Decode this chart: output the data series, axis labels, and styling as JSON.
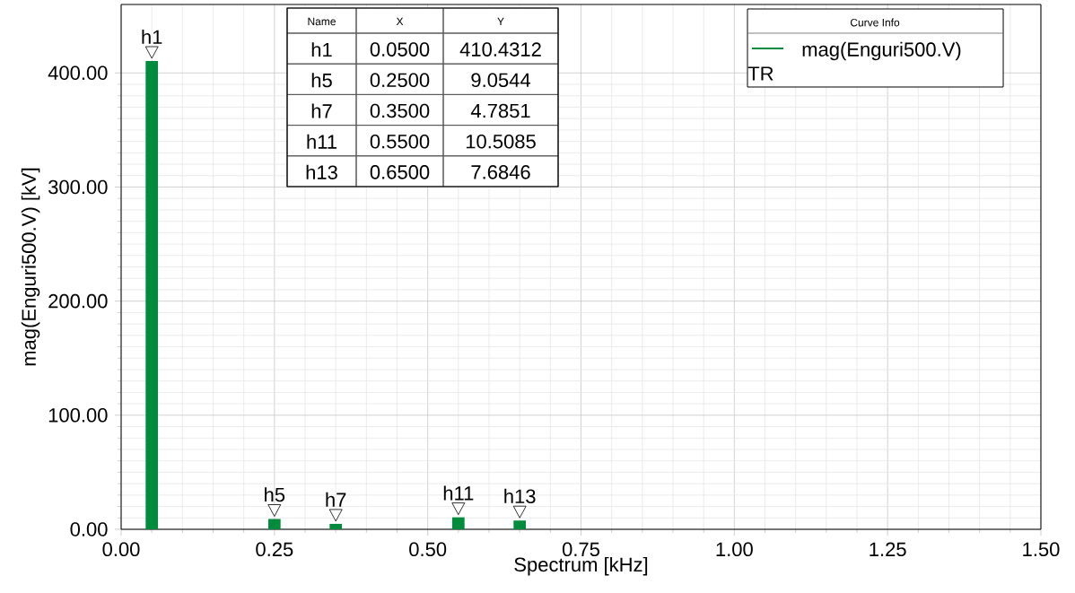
{
  "chart_data": {
    "type": "bar",
    "xlabel": "Spectrum [kHz]",
    "ylabel": "mag(Enguri500.V) [kV]",
    "legend_title": "Curve Info",
    "x": [
      0.05,
      0.25,
      0.35,
      0.55,
      0.65
    ],
    "series": [
      {
        "name": "mag(Enguri500.V)",
        "color": "#008c3c",
        "values": [
          410.4312,
          9.0544,
          4.7851,
          10.5085,
          7.6846
        ]
      }
    ],
    "value_labels": [
      "410.4312",
      "9.0544",
      "4.7851",
      "10.5085",
      "7.6846"
    ],
    "annotations": [
      {
        "text": "h1",
        "x": 0.05,
        "y": 410.4312
      },
      {
        "text": "h5",
        "x": 0.25,
        "y": 9.0544
      },
      {
        "text": "h7",
        "x": 0.35,
        "y": 4.7851
      },
      {
        "text": "h11",
        "x": 0.55,
        "y": 10.5085
      },
      {
        "text": "h13",
        "x": 0.65,
        "y": 7.6846
      },
      "Name",
      "X",
      "Y",
      "0.0500",
      "0.2500",
      "0.3500",
      "0.5500",
      "0.6500",
      "TR"
    ],
    "xlim": [
      0,
      1.5
    ],
    "xticks": [
      {
        "value": 0,
        "label": "0.00"
      },
      {
        "value": 0.25,
        "label": "0.25"
      },
      {
        "value": 0.5,
        "label": "0.50"
      },
      {
        "value": 0.75,
        "label": "0.75"
      },
      {
        "value": 1,
        "label": "1.00"
      },
      {
        "value": 1.25,
        "label": "1.25"
      },
      {
        "value": 1.5,
        "label": "1.50"
      }
    ],
    "ylim": [
      0,
      460
    ],
    "yticks": [
      {
        "value": 0,
        "label": "0.00"
      },
      {
        "value": 100,
        "label": "100.00"
      },
      {
        "value": 200,
        "label": "200.00"
      },
      {
        "value": 300,
        "label": "300.00"
      },
      {
        "value": 400,
        "label": "400.00"
      }
    ],
    "grid": true,
    "legend": "top right"
  }
}
